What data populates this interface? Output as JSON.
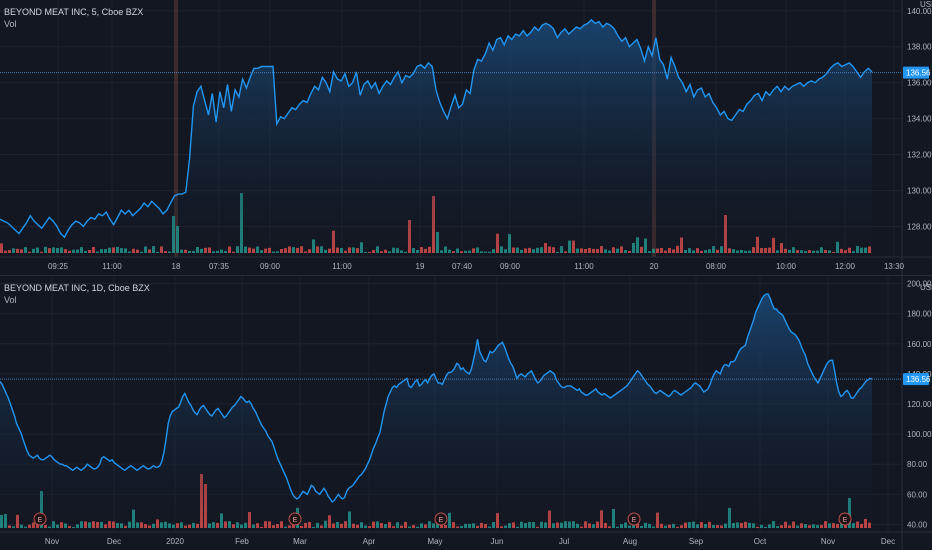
{
  "colors": {
    "background": "#131722",
    "grid": "#1e222d",
    "axis_text": "#b2b5be",
    "line": "#2196f3",
    "fill_top": "#1a4a7a",
    "vol_up": "#26a69a",
    "vol_down": "#ef5350",
    "price_label_bg": "#2196f3",
    "crosshair": "#4a7bb0",
    "session_marker": "#5c3a36"
  },
  "chart_data": [
    {
      "type": "area",
      "title": "BEYOND MEAT INC, 5, Cboe BZX",
      "volume_label": "Vol",
      "y_unit": "USD",
      "y_ticks": [
        "140.00",
        "138.00",
        "136.00",
        "134.00",
        "132.00",
        "130.00",
        "128.00"
      ],
      "ylim": [
        126.3,
        140.6
      ],
      "x_ticks": [
        "09:25",
        "11:00",
        "18",
        "07:35",
        "09:00",
        "11:00",
        "19",
        "07:40",
        "09:00",
        "11:00",
        "20",
        "08:00",
        "10:00",
        "12:00",
        "13:30"
      ],
      "price_label": "136.56",
      "last_price": 136.56,
      "series": [
        {
          "values": [
            128.4,
            128.3,
            128.2,
            128.0,
            127.8,
            127.6,
            127.9,
            128.2,
            128.6,
            128.3,
            128.1,
            127.9,
            128.2,
            128.5,
            128.3,
            128.0,
            127.6,
            127.4,
            127.8,
            128.1,
            128.3,
            128.2,
            128.0,
            128.3,
            128.5,
            128.4,
            128.7,
            128.6,
            128.8,
            128.4,
            128.1,
            128.5,
            128.9,
            128.7,
            128.9,
            128.6,
            128.8,
            129.0,
            129.3,
            129.1,
            129.4,
            129.2,
            129.0,
            128.7,
            128.9,
            129.3,
            129.7,
            129.8,
            129.8,
            129.9,
            131.8,
            134.7,
            135.5,
            135.8,
            135.0,
            134.2,
            135.4,
            133.8,
            135.5,
            134.6,
            135.9,
            134.4,
            135.6,
            135.2,
            136.2,
            135.7,
            136.3,
            136.8,
            136.8,
            136.9,
            136.9,
            136.9,
            136.9,
            133.7,
            134.1,
            134.0,
            134.3,
            134.6,
            134.5,
            134.8,
            135.0,
            134.9,
            135.4,
            135.8,
            135.6,
            136.3,
            136.0,
            135.5,
            136.6,
            136.2,
            136.1,
            136.5,
            135.8,
            136.0,
            136.6,
            135.3,
            135.9,
            136.1,
            135.7,
            136.0,
            135.4,
            135.8,
            136.1,
            135.9,
            136.3,
            136.6,
            136.0,
            136.4,
            136.3,
            136.5,
            136.9,
            137.0,
            136.8,
            137.1,
            136.9,
            135.6,
            134.9,
            134.4,
            134.0,
            134.7,
            135.3,
            134.6,
            134.8,
            135.6,
            135.4,
            136.7,
            137.3,
            137.2,
            137.6,
            138.2,
            137.8,
            138.4,
            138.5,
            138.1,
            138.6,
            138.4,
            138.7,
            138.6,
            138.9,
            138.6,
            138.8,
            139.1,
            138.9,
            139.2,
            139.3,
            139.2,
            139.0,
            138.5,
            138.8,
            139.0,
            138.7,
            138.9,
            139.1,
            139.0,
            139.2,
            139.3,
            139.5,
            139.3,
            139.4,
            139.1,
            139.3,
            139.2,
            139.0,
            138.6,
            138.3,
            138.5,
            138.0,
            138.2,
            138.4,
            137.9,
            137.2,
            138.0,
            137.5,
            138.5,
            137.3,
            137.0,
            136.2,
            137.4,
            136.9,
            136.3,
            136.0,
            135.5,
            135.9,
            135.2,
            135.6,
            135.7,
            135.2,
            135.4,
            134.9,
            134.6,
            134.2,
            134.4,
            134.0,
            133.9,
            134.2,
            134.5,
            134.4,
            134.8,
            135.0,
            135.3,
            135.4,
            135.0,
            135.5,
            135.3,
            135.6,
            135.8,
            135.5,
            135.8,
            135.6,
            135.8,
            135.9,
            136.0,
            135.8,
            136.0,
            136.1,
            136.0,
            136.2,
            136.3,
            136.5,
            136.8,
            137.0,
            137.1,
            136.9,
            137.0,
            137.1,
            136.9,
            136.6,
            136.3,
            136.6,
            136.8,
            136.6
          ]
        }
      ]
    },
    {
      "type": "area",
      "title": "BEYOND MEAT INC, 1D, Cboe BZX",
      "volume_label": "Vol",
      "y_unit": "USD",
      "y_ticks": [
        "200.00",
        "180.00",
        "160.00",
        "140.00",
        "120.00",
        "100.00",
        "80.00",
        "60.00",
        "40.00"
      ],
      "ylim": [
        35,
        205
      ],
      "x_ticks": [
        "Nov",
        "Dec",
        "2020",
        "Feb",
        "Mar",
        "Apr",
        "May",
        "Jun",
        "Jul",
        "Aug",
        "Sep",
        "Oct",
        "Nov",
        "Dec"
      ],
      "price_label": "136.56",
      "last_price": 136.56,
      "earnings_markers": [
        "E",
        "E",
        "E",
        "E",
        "E"
      ],
      "series": [
        {
          "values": [
            135,
            133,
            130,
            127,
            124,
            120,
            116,
            112,
            107,
            104,
            101,
            97,
            93,
            89,
            86,
            85,
            84,
            85,
            86,
            84,
            83,
            83,
            84,
            85,
            86,
            85,
            83,
            82,
            81,
            80,
            80,
            79,
            79,
            78,
            77,
            76,
            77,
            78,
            77,
            76,
            77,
            78,
            80,
            79,
            78,
            77,
            77,
            78,
            80,
            84,
            85,
            84,
            83,
            82,
            83,
            81,
            80,
            79,
            78,
            77,
            76,
            77,
            78,
            79,
            78,
            77,
            76,
            77,
            78,
            79,
            78,
            77,
            77,
            78,
            79,
            78,
            78,
            79,
            82,
            88,
            97,
            107,
            112,
            115,
            116,
            117,
            118,
            121,
            125,
            127,
            124,
            121,
            119,
            116,
            114,
            113,
            116,
            118,
            119,
            117,
            115,
            113,
            112,
            114,
            116,
            117,
            115,
            113,
            111,
            112,
            114,
            116,
            118,
            119,
            121,
            123,
            125,
            124,
            122,
            121,
            122,
            120,
            117,
            115,
            112,
            109,
            106,
            104,
            102,
            99,
            97,
            95,
            91,
            87,
            83,
            80,
            77,
            74,
            71,
            67,
            63,
            60,
            58,
            57,
            58,
            60,
            62,
            61,
            60,
            63,
            66,
            65,
            62,
            61,
            60,
            62,
            64,
            62,
            59,
            57,
            55,
            56,
            58,
            60,
            58,
            57,
            58,
            62,
            64,
            65,
            66,
            68,
            70,
            72,
            73,
            75,
            77,
            80,
            83,
            87,
            91,
            94,
            98,
            101,
            108,
            115,
            120,
            125,
            128,
            131,
            132,
            131,
            133,
            134,
            135,
            136,
            137,
            132,
            131,
            133,
            135,
            136,
            132,
            133,
            135,
            136,
            134,
            137,
            139,
            140,
            137,
            134,
            134,
            133,
            136,
            139,
            141,
            141,
            142,
            144,
            147,
            146,
            143,
            144,
            142,
            141,
            140,
            143,
            149,
            155,
            163,
            155,
            152,
            149,
            148,
            151,
            155,
            154,
            155,
            157,
            159,
            160,
            161,
            158,
            154,
            150,
            147,
            145,
            141,
            137,
            139,
            140,
            139,
            138,
            140,
            141,
            142,
            139,
            136,
            134,
            135,
            137,
            139,
            140,
            141,
            142,
            141,
            140,
            136,
            134,
            132,
            131,
            131,
            132,
            132,
            132,
            131,
            130,
            129,
            130,
            128,
            127,
            126,
            126,
            127,
            128,
            129,
            130,
            128,
            127,
            126,
            127,
            126,
            125,
            124,
            125,
            126,
            127,
            128,
            129,
            130,
            131,
            132,
            134,
            136,
            138,
            140,
            142,
            141,
            139,
            137,
            135,
            133,
            132,
            130,
            128,
            127,
            128,
            129,
            128,
            127,
            126,
            125,
            126,
            128,
            129,
            128,
            127,
            126,
            127,
            128,
            129,
            130,
            131,
            133,
            134,
            133,
            132,
            130,
            128,
            129,
            130,
            133,
            137,
            140,
            142,
            141,
            140,
            144,
            146,
            146,
            145,
            148,
            148,
            149,
            152,
            155,
            157,
            158,
            159,
            164,
            168,
            172,
            176,
            181,
            184,
            187,
            190,
            192,
            193,
            193,
            190,
            186,
            183,
            183,
            181,
            180,
            179,
            176,
            173,
            170,
            168,
            167,
            166,
            164,
            162,
            158,
            155,
            152,
            147,
            144,
            141,
            138,
            136,
            134,
            137,
            140,
            143,
            146,
            148,
            149,
            149,
            142,
            134,
            128,
            125,
            126,
            128,
            129,
            127,
            124,
            124,
            126,
            128,
            130,
            131,
            133,
            135,
            136,
            137,
            136.56
          ]
        }
      ]
    }
  ]
}
